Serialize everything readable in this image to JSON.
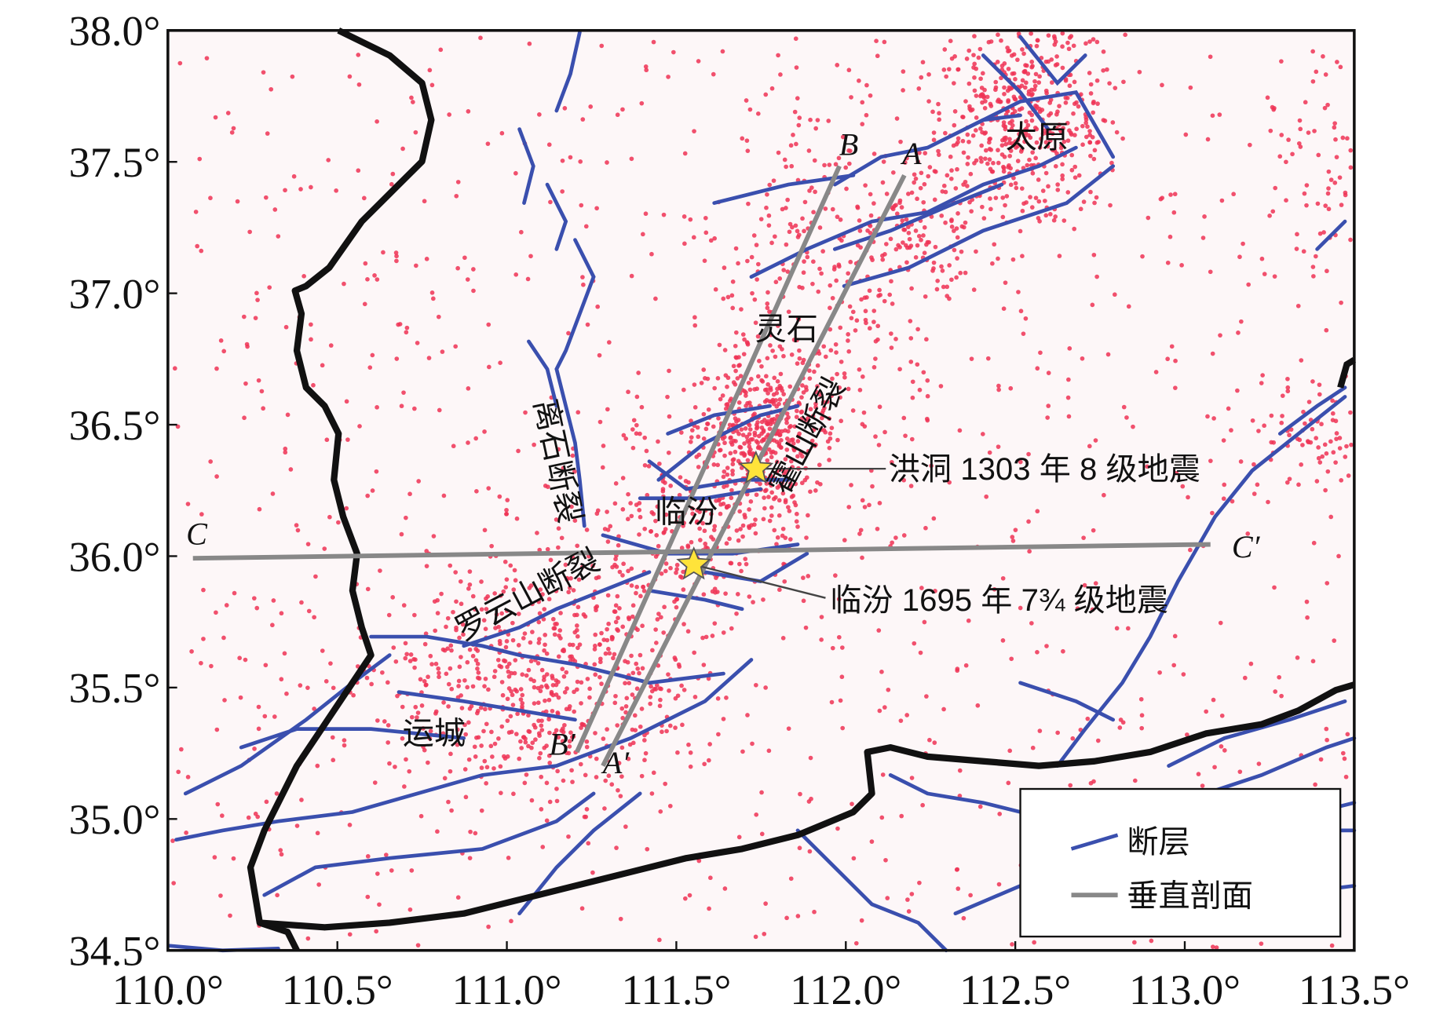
{
  "map_data": {
    "xlim": [
      110.0,
      113.5
    ],
    "ylim": [
      34.5,
      38.0
    ],
    "xticks": [
      {
        "value": 110.0,
        "label": "110.0°"
      },
      {
        "value": 110.5,
        "label": "110.5°"
      },
      {
        "value": 111.0,
        "label": "111.0°"
      },
      {
        "value": 111.5,
        "label": "111.5°"
      },
      {
        "value": 112.0,
        "label": "112.0°"
      },
      {
        "value": 112.5,
        "label": "112.5°"
      },
      {
        "value": 113.0,
        "label": "113.0°"
      },
      {
        "value": 113.5,
        "label": "113.5°"
      }
    ],
    "yticks": [
      {
        "value": 34.5,
        "label": "34.5°"
      },
      {
        "value": 35.0,
        "label": "35.0°"
      },
      {
        "value": 35.5,
        "label": "35.5°"
      },
      {
        "value": 36.0,
        "label": "36.0°"
      },
      {
        "value": 36.5,
        "label": "36.5°"
      },
      {
        "value": 37.0,
        "label": "37.0°"
      },
      {
        "value": 37.5,
        "label": "37.5°"
      },
      {
        "value": 38.0,
        "label": "38.0°"
      }
    ],
    "places": [
      "太原",
      "灵石",
      "临汾",
      "运城"
    ],
    "faults": [
      "离石断裂",
      "罗云山断裂",
      "霍山断裂"
    ],
    "earthquakes": [
      "洪洞 1303 年 8 级地震",
      "临汾 1695 年 7¾ 级地震"
    ],
    "profile_labels": [
      "A",
      "A′",
      "B",
      "B′",
      "C",
      "C′"
    ],
    "legend": [
      "断层",
      "垂直剖面"
    ]
  }
}
